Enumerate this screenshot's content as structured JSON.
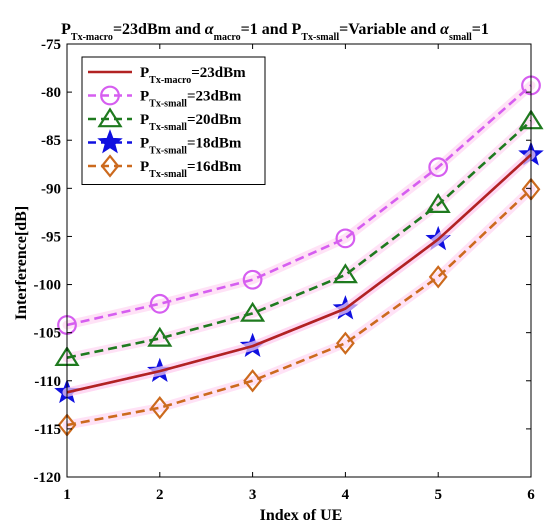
{
  "chart_data": {
    "type": "line",
    "title": {
      "parts": [
        {
          "t": "P",
          "sub": "Tx-macro"
        },
        {
          "t": "=23dBm and "
        },
        {
          "t": "α",
          "italic": true,
          "sub": "macro"
        },
        {
          "t": "=1 and P",
          "sub": "Tx-small"
        },
        {
          "t": "=Variable and "
        },
        {
          "t": "α",
          "italic": true,
          "sub": "small"
        },
        {
          "t": "=1"
        }
      ]
    },
    "xlabel": "Index of UE",
    "ylabel": "Interference[dB]",
    "x": [
      1,
      2,
      3,
      4,
      5,
      6
    ],
    "xlim": [
      1,
      6
    ],
    "ylim": [
      -120,
      -75
    ],
    "xticks": [
      "1",
      "2",
      "3",
      "4",
      "5",
      "6"
    ],
    "yticks": [
      "-75",
      "-80",
      "-85",
      "-90",
      "-95",
      "-100",
      "-105",
      "-110",
      "-115",
      "-120"
    ],
    "grid": false,
    "legend_position": "top-left",
    "series": [
      {
        "name_main": "P",
        "name_sub": "Tx-macro",
        "name_tail": "=23dBm",
        "color": "#b22222",
        "dash": "solid",
        "marker": "point",
        "values": [
          -111.2,
          -109.0,
          -106.4,
          -102.5,
          -95.3,
          -86.5
        ]
      },
      {
        "name_main": "P",
        "name_sub": "Tx-small",
        "name_tail": "=23dBm",
        "color": "#d65ef0",
        "dash": "dashed",
        "marker": "circle",
        "values": [
          -104.2,
          -102.0,
          -99.5,
          -95.2,
          -87.8,
          -79.3
        ]
      },
      {
        "name_main": "P",
        "name_sub": "Tx-small",
        "name_tail": "=20dBm",
        "color": "#1f7a1f",
        "dash": "dashed",
        "marker": "triangle",
        "values": [
          -107.6,
          -105.6,
          -103.0,
          -99.0,
          -91.7,
          -83.0
        ]
      },
      {
        "name_main": "P",
        "name_sub": "Tx-small",
        "name_tail": "=18dBm",
        "color": "#1010e0",
        "dash": "dashed",
        "marker": "star",
        "values": [
          -111.2,
          -109.0,
          -106.4,
          -102.5,
          -95.3,
          -86.5
        ]
      },
      {
        "name_main": "P",
        "name_sub": "Tx-small",
        "name_tail": "=16dBm",
        "color": "#cc6a1e",
        "dash": "dashed",
        "marker": "diamond",
        "values": [
          -114.6,
          -112.8,
          -110.0,
          -106.1,
          -99.2,
          -90.1
        ]
      }
    ]
  }
}
